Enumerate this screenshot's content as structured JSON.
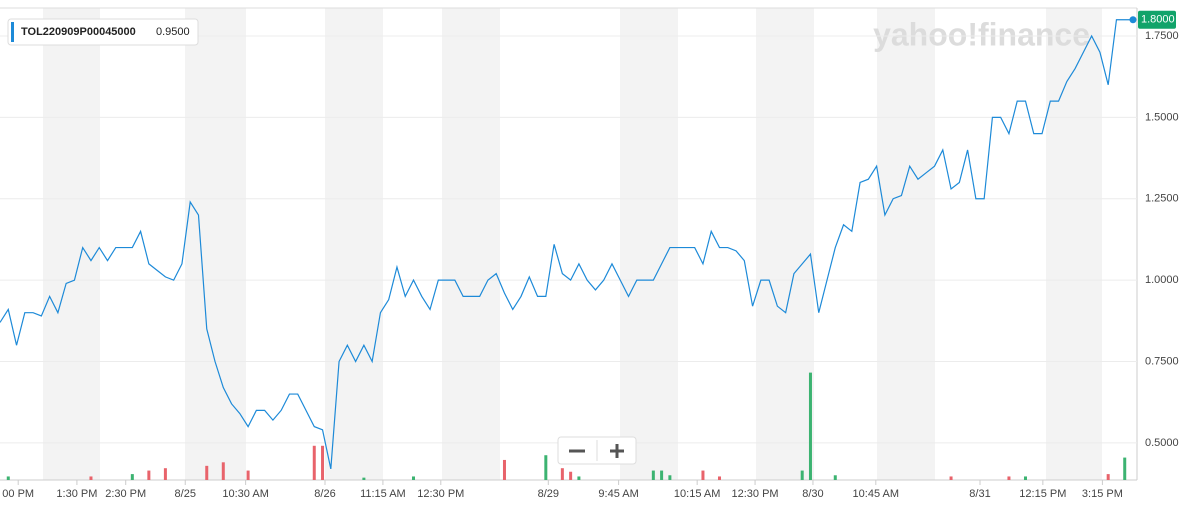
{
  "chart_data": {
    "type": "line",
    "watermark": "yahoo!finance",
    "series": [
      {
        "name": "TOL220909P00045000",
        "color": "#1d8ad8",
        "values": [
          0.87,
          0.91,
          0.8,
          0.9,
          0.9,
          0.89,
          0.95,
          0.9,
          0.99,
          1.0,
          1.1,
          1.06,
          1.1,
          1.06,
          1.1,
          1.1,
          1.1,
          1.15,
          1.05,
          1.03,
          1.01,
          1.0,
          1.05,
          1.24,
          1.2,
          0.85,
          0.75,
          0.67,
          0.62,
          0.59,
          0.55,
          0.6,
          0.6,
          0.57,
          0.6,
          0.65,
          0.65,
          0.6,
          0.55,
          0.54,
          0.42,
          0.75,
          0.8,
          0.75,
          0.8,
          0.75,
          0.9,
          0.94,
          1.04,
          0.95,
          1.0,
          0.95,
          0.91,
          1.0,
          1.0,
          1.0,
          0.95,
          0.95,
          0.95,
          1.0,
          1.02,
          0.96,
          0.91,
          0.95,
          1.01,
          0.95,
          0.95,
          1.11,
          1.02,
          1.0,
          1.05,
          1.0,
          0.97,
          1.0,
          1.05,
          1.0,
          0.95,
          1.0,
          1.0,
          1.0,
          1.05,
          1.1,
          1.1,
          1.1,
          1.1,
          1.05,
          1.15,
          1.1,
          1.1,
          1.09,
          1.06,
          0.92,
          1.0,
          1.0,
          0.92,
          0.9,
          1.02,
          1.05,
          1.08,
          0.9,
          1.0,
          1.1,
          1.17,
          1.15,
          1.3,
          1.31,
          1.35,
          1.2,
          1.25,
          1.26,
          1.35,
          1.31,
          1.33,
          1.35,
          1.4,
          1.28,
          1.3,
          1.4,
          1.25,
          1.25,
          1.5,
          1.5,
          1.45,
          1.55,
          1.55,
          1.45,
          1.45,
          1.55,
          1.55,
          1.61,
          1.65,
          1.7,
          1.75,
          1.7,
          1.6,
          1.8,
          1.8,
          1.8
        ]
      }
    ],
    "legend_value_label": "0.9500",
    "last_label": "1.8000",
    "xlim": [
      0,
      137
    ],
    "xticks": [
      {
        "value": 2.2,
        "label": "00 PM"
      },
      {
        "value": 9.3,
        "label": "1:30 PM"
      },
      {
        "value": 15.2,
        "label": "2:30 PM"
      },
      {
        "value": 22.4,
        "label": "8/25"
      },
      {
        "value": 29.7,
        "label": "10:30 AM"
      },
      {
        "value": 39.3,
        "label": "8/26"
      },
      {
        "value": 46.3,
        "label": "11:15 AM"
      },
      {
        "value": 53.3,
        "label": "12:30 PM"
      },
      {
        "value": 66.3,
        "label": "8/29"
      },
      {
        "value": 74.8,
        "label": "9:45 AM"
      },
      {
        "value": 84.3,
        "label": "10:15 AM"
      },
      {
        "value": 91.3,
        "label": "12:30 PM"
      },
      {
        "value": 98.3,
        "label": "8/30"
      },
      {
        "value": 105.9,
        "label": "10:45 AM"
      },
      {
        "value": 118.5,
        "label": "8/31"
      },
      {
        "value": 126.1,
        "label": "12:15 PM"
      },
      {
        "value": 133.3,
        "label": "3:15 PM"
      }
    ],
    "ylim": [
      0.386,
      1.836
    ],
    "yticks": [
      {
        "value": 0.5,
        "label": "0.5000"
      },
      {
        "value": 0.75,
        "label": "0.7500"
      },
      {
        "value": 1.0,
        "label": "1.0000"
      },
      {
        "value": 1.25,
        "label": "1.2500"
      },
      {
        "value": 1.5,
        "label": "1.5000"
      },
      {
        "value": 1.75,
        "label": "1.7500"
      }
    ],
    "grid": true,
    "volume": {
      "x": [
        1,
        11,
        16,
        18,
        20,
        25,
        27,
        30,
        38,
        39,
        44,
        50,
        61,
        66,
        68,
        69,
        70,
        79,
        80,
        81,
        85,
        87,
        97,
        98,
        101,
        115,
        122,
        124,
        134,
        136
      ],
      "values": [
        3,
        3,
        5,
        8,
        10,
        12,
        15,
        8,
        29,
        29,
        2,
        3,
        17,
        21,
        10,
        7,
        3,
        8,
        8,
        4,
        8,
        3,
        8,
        91,
        4,
        3,
        3,
        3,
        5,
        19
      ],
      "colors": [
        "#3cb371",
        "#e8636b",
        "#3cb371",
        "#e8636b",
        "#e8636b",
        "#e8636b",
        "#e8636b",
        "#e8636b",
        "#e8636b",
        "#e8636b",
        "#3cb371",
        "#3cb371",
        "#e8636b",
        "#3cb371",
        "#e8636b",
        "#e8636b",
        "#3cb371",
        "#3cb371",
        "#3cb371",
        "#3cb371",
        "#e8636b",
        "#e8636b",
        "#3cb371",
        "#3cb371",
        "#3cb371",
        "#e8636b",
        "#e8636b",
        "#3cb371",
        "#e8636b",
        "#3cb371"
      ],
      "ylim": [
        0,
        400
      ]
    }
  }
}
